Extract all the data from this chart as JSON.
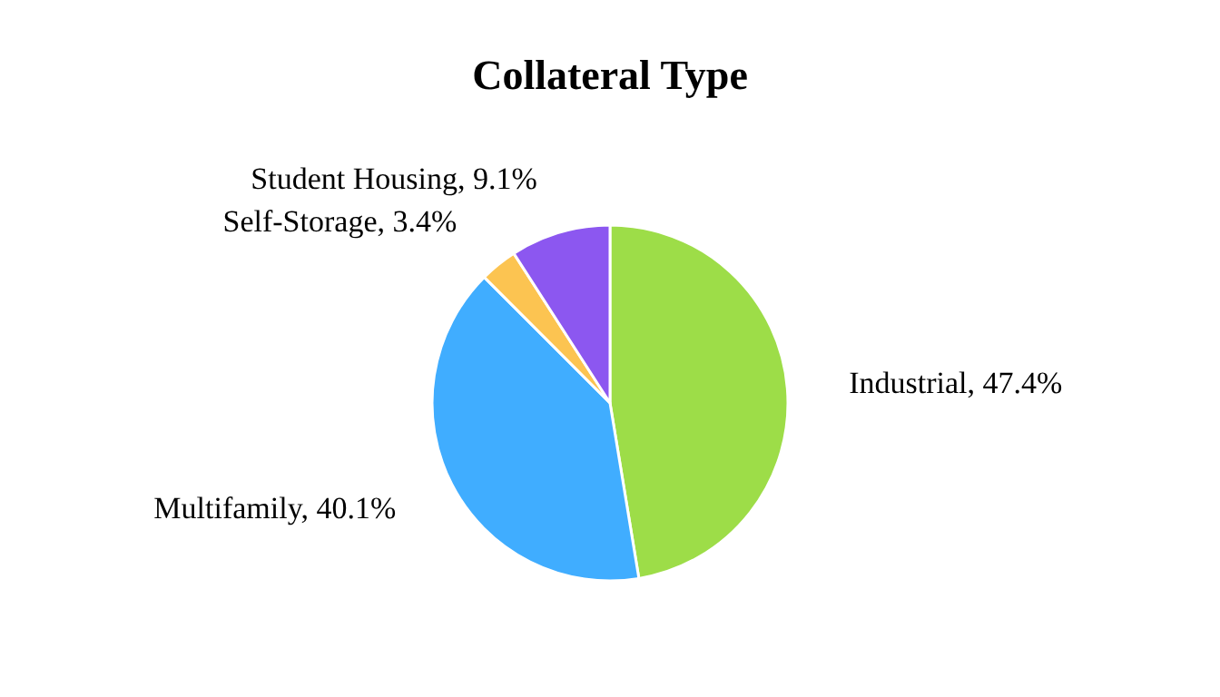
{
  "chart_data": {
    "type": "pie",
    "title": "Collateral Type",
    "categories": [
      "Industrial",
      "Multifamily",
      "Self-Storage",
      "Student Housing"
    ],
    "values": [
      47.4,
      40.1,
      3.4,
      9.1
    ],
    "value_labels": [
      "47.4%",
      "40.1%",
      "3.4%",
      "9.1%"
    ],
    "colors": [
      "#9ddd48",
      "#40adff",
      "#fcc451",
      "#8c57f0"
    ],
    "legend": false
  }
}
